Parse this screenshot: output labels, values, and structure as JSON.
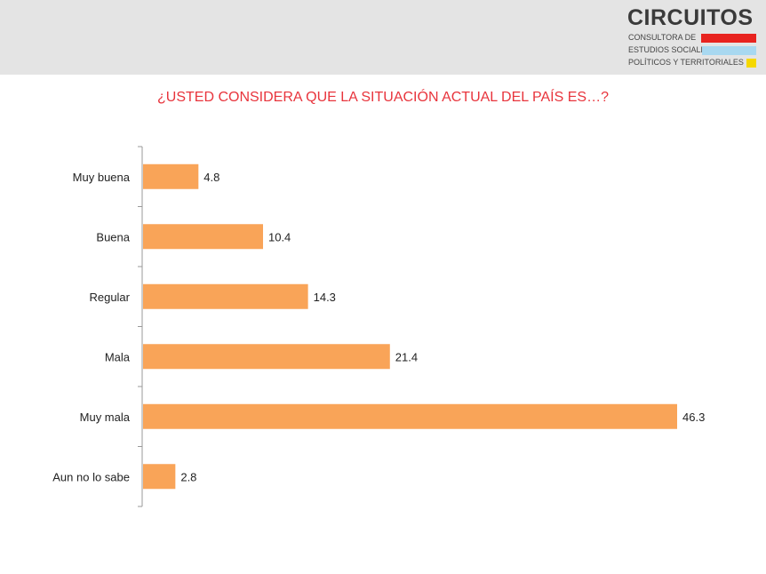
{
  "brand": {
    "name": "CIRCUITOS",
    "line1": "CONSULTORA DE",
    "line2": "ESTUDIOS SOCIALES,",
    "line3": "POLÍTICOS Y TERRITORIALES",
    "colors": {
      "red": "#e8231f",
      "blue": "#a8d8f0",
      "yellow": "#f5d800"
    }
  },
  "chart_data": {
    "type": "bar",
    "orientation": "horizontal",
    "title": "¿USTED CONSIDERA QUE LA SITUACIÓN ACTUAL DEL PAÍS ES…?",
    "categories": [
      "Muy buena",
      "Buena",
      "Regular",
      "Mala",
      "Muy mala",
      "Aun no lo sabe"
    ],
    "values": [
      4.8,
      10.4,
      14.3,
      21.4,
      46.3,
      2.8
    ],
    "xlim": [
      0,
      50
    ],
    "grid": false,
    "bar_color": "#f9a458",
    "title_color": "#e8343c"
  }
}
